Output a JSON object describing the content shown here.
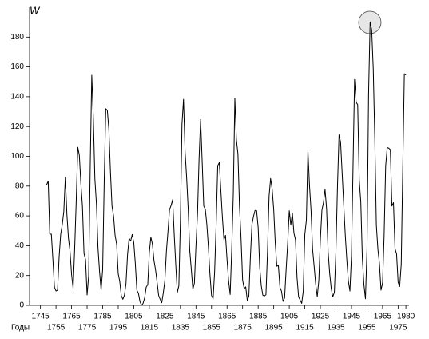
{
  "chart_data": {
    "type": "line",
    "y_label": "W",
    "x_label": "Годы",
    "x": [
      1749,
      1750,
      1751,
      1752,
      1753,
      1754,
      1755,
      1756,
      1757,
      1758,
      1759,
      1760,
      1761,
      1762,
      1763,
      1764,
      1765,
      1766,
      1767,
      1768,
      1769,
      1770,
      1771,
      1772,
      1773,
      1774,
      1775,
      1776,
      1777,
      1778,
      1779,
      1780,
      1781,
      1782,
      1783,
      1784,
      1785,
      1786,
      1787,
      1788,
      1789,
      1790,
      1791,
      1792,
      1793,
      1794,
      1795,
      1796,
      1797,
      1798,
      1799,
      1800,
      1801,
      1802,
      1803,
      1804,
      1805,
      1806,
      1807,
      1808,
      1809,
      1810,
      1811,
      1812,
      1813,
      1814,
      1815,
      1816,
      1817,
      1818,
      1819,
      1820,
      1821,
      1822,
      1823,
      1824,
      1825,
      1826,
      1827,
      1828,
      1829,
      1830,
      1831,
      1832,
      1833,
      1834,
      1835,
      1836,
      1837,
      1838,
      1839,
      1840,
      1841,
      1842,
      1843,
      1844,
      1845,
      1846,
      1847,
      1848,
      1849,
      1850,
      1851,
      1852,
      1853,
      1854,
      1855,
      1856,
      1857,
      1858,
      1859,
      1860,
      1861,
      1862,
      1863,
      1864,
      1865,
      1866,
      1867,
      1868,
      1869,
      1870,
      1871,
      1872,
      1873,
      1874,
      1875,
      1876,
      1877,
      1878,
      1879,
      1880,
      1881,
      1882,
      1883,
      1884,
      1885,
      1886,
      1887,
      1888,
      1889,
      1890,
      1891,
      1892,
      1893,
      1894,
      1895,
      1896,
      1897,
      1898,
      1899,
      1900,
      1901,
      1902,
      1903,
      1904,
      1905,
      1906,
      1907,
      1908,
      1909,
      1910,
      1911,
      1912,
      1913,
      1914,
      1915,
      1916,
      1917,
      1918,
      1919,
      1920,
      1921,
      1922,
      1923,
      1924,
      1925,
      1926,
      1927,
      1928,
      1929,
      1930,
      1931,
      1932,
      1933,
      1934,
      1935,
      1936,
      1937,
      1938,
      1939,
      1940,
      1941,
      1942,
      1943,
      1944,
      1945,
      1946,
      1947,
      1948,
      1949,
      1950,
      1951,
      1952,
      1953,
      1954,
      1955,
      1956,
      1957,
      1958,
      1959,
      1960,
      1961,
      1962,
      1963,
      1964,
      1965,
      1966,
      1967,
      1968,
      1969,
      1970,
      1971,
      1972,
      1973,
      1974,
      1975,
      1976,
      1977,
      1978,
      1979,
      1980
    ],
    "values": [
      80.9,
      83.4,
      47.7,
      47.8,
      30.7,
      12.2,
      9.6,
      10.2,
      32.4,
      47.6,
      54.0,
      62.9,
      85.9,
      61.2,
      45.1,
      36.4,
      20.9,
      11.4,
      37.8,
      69.8,
      106.1,
      100.8,
      81.6,
      66.5,
      34.8,
      30.6,
      7.0,
      19.8,
      92.5,
      154.4,
      125.9,
      84.8,
      68.1,
      38.5,
      22.8,
      10.2,
      24.1,
      82.9,
      132.0,
      130.9,
      118.1,
      89.9,
      66.6,
      60.0,
      46.9,
      41.0,
      21.3,
      16.0,
      6.4,
      4.1,
      6.8,
      14.5,
      34.0,
      45.0,
      43.1,
      47.5,
      42.2,
      28.1,
      10.1,
      8.1,
      2.5,
      0.0,
      1.4,
      5.0,
      12.2,
      13.9,
      35.4,
      45.8,
      41.1,
      30.1,
      23.9,
      15.6,
      6.6,
      4.0,
      1.8,
      8.5,
      16.6,
      36.3,
      49.6,
      64.2,
      67.0,
      70.9,
      47.8,
      27.5,
      8.5,
      13.2,
      56.9,
      121.5,
      138.3,
      103.2,
      85.7,
      64.6,
      36.7,
      24.2,
      10.7,
      15.0,
      40.1,
      61.5,
      98.5,
      124.7,
      96.3,
      66.6,
      64.5,
      54.1,
      39.0,
      20.6,
      6.7,
      4.3,
      22.7,
      54.8,
      93.8,
      95.8,
      77.2,
      59.1,
      44.0,
      47.0,
      30.5,
      16.3,
      7.3,
      37.6,
      74.0,
      139.0,
      111.2,
      101.6,
      66.2,
      44.7,
      17.0,
      11.3,
      12.4,
      3.4,
      6.0,
      32.3,
      54.3,
      59.7,
      63.7,
      63.5,
      52.2,
      25.4,
      13.1,
      6.8,
      6.3,
      7.1,
      35.6,
      73.0,
      85.1,
      78.0,
      64.0,
      41.8,
      26.2,
      26.7,
      12.1,
      9.5,
      2.7,
      5.0,
      24.4,
      42.0,
      63.5,
      53.8,
      62.0,
      48.5,
      43.9,
      18.6,
      5.7,
      3.6,
      1.4,
      9.6,
      47.4,
      57.1,
      103.9,
      80.6,
      63.6,
      37.6,
      26.1,
      14.2,
      5.8,
      16.7,
      44.3,
      63.9,
      69.0,
      77.8,
      64.9,
      35.7,
      21.2,
      11.1,
      5.7,
      8.7,
      36.1,
      79.7,
      114.4,
      109.6,
      88.8,
      67.8,
      47.5,
      30.6,
      16.3,
      9.6,
      33.2,
      92.6,
      151.6,
      136.3,
      134.7,
      83.9,
      69.4,
      31.5,
      13.9,
      4.4,
      38.0,
      141.7,
      190.2,
      184.8,
      159.0,
      112.3,
      53.9,
      37.5,
      27.9,
      10.2,
      15.1,
      47.0,
      93.8,
      105.9,
      105.5,
      104.5,
      66.6,
      68.9,
      38.0,
      34.5,
      15.5,
      12.6,
      27.5,
      92.5,
      155.4,
      154.6
    ],
    "color": "#000000",
    "xlim": [
      1738,
      1982
    ],
    "xticks": [
      1745,
      1755,
      1765,
      1775,
      1785,
      1795,
      1805,
      1815,
      1825,
      1835,
      1845,
      1855,
      1865,
      1875,
      1885,
      1895,
      1905,
      1915,
      1925,
      1935,
      1945,
      1955,
      1965,
      1975,
      1980
    ],
    "ylim": [
      0,
      200
    ],
    "yticks": [
      0,
      20,
      40,
      60,
      80,
      100,
      120,
      140,
      160,
      180
    ],
    "grid": false
  }
}
